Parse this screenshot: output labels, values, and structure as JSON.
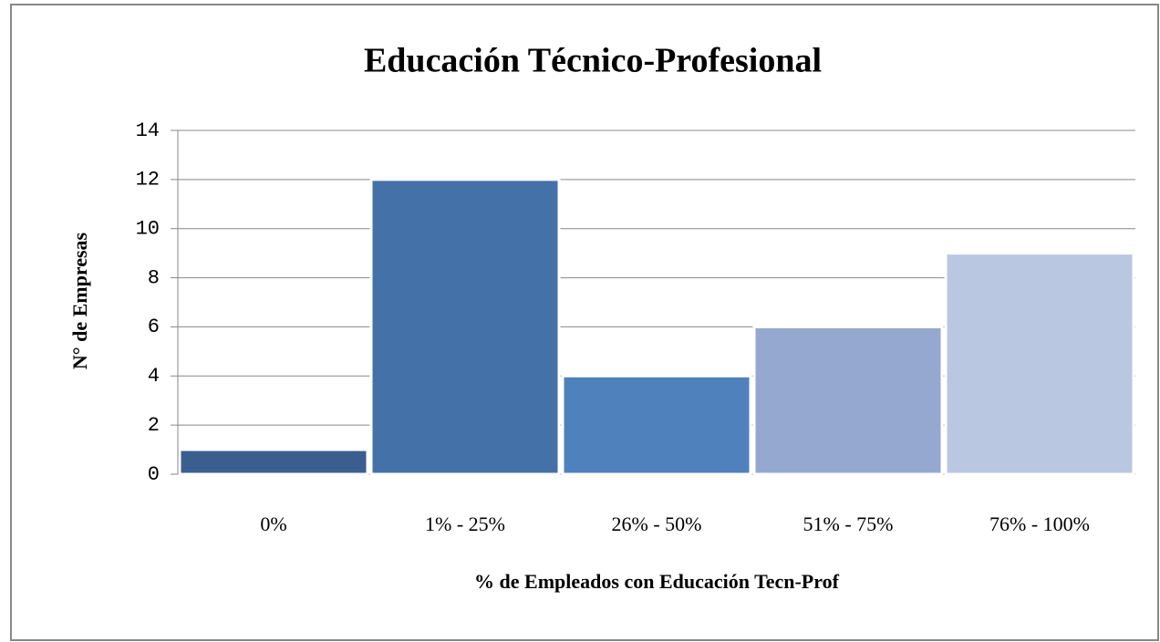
{
  "chart_data": {
    "type": "bar",
    "title": "Educación Técnico-Profesional",
    "xlabel": "% de Empleados con Educación Tecn-Prof",
    "ylabel": "N° de Empresas",
    "categories": [
      "0%",
      "1% - 25%",
      "26% - 50%",
      "51% - 75%",
      "76% - 100%"
    ],
    "values": [
      1,
      12,
      4,
      6,
      9
    ],
    "colors": [
      "#3a5f8f",
      "#4472a8",
      "#4f81bd",
      "#95a9d0",
      "#b9c7e0"
    ],
    "ylim": [
      0,
      14
    ],
    "yticks": [
      0,
      2,
      4,
      6,
      8,
      10,
      12,
      14
    ],
    "grid": true
  }
}
